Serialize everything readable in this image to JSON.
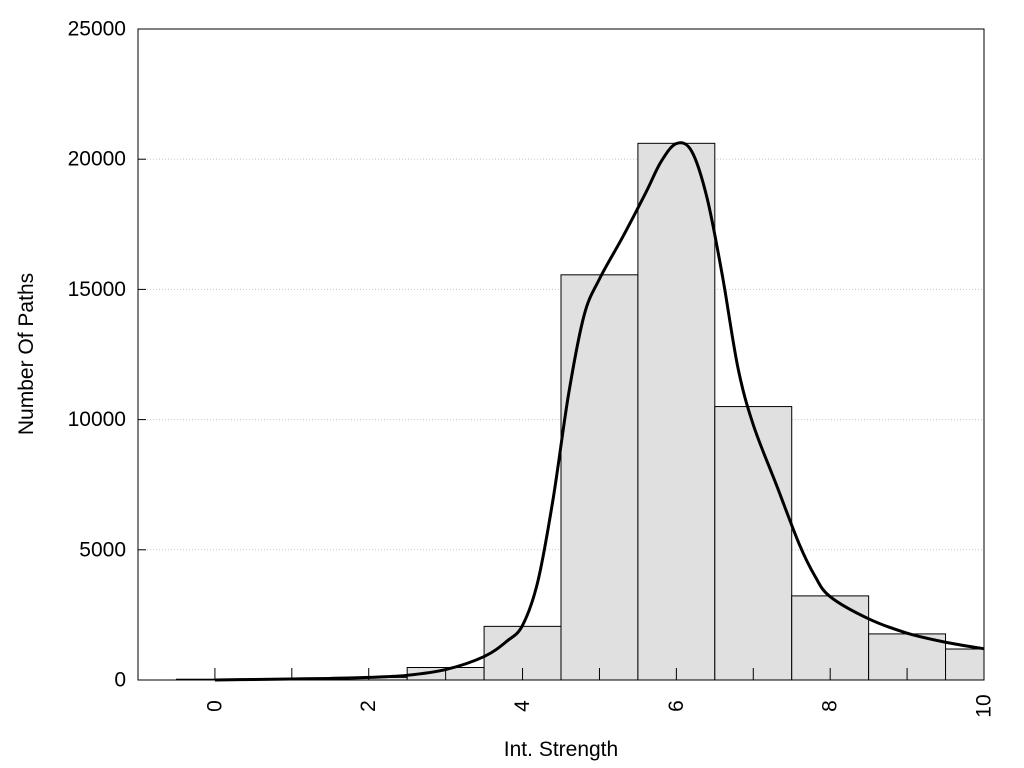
{
  "chart_data": {
    "type": "bar",
    "title": "",
    "xlabel": "Int. Strength",
    "ylabel": "Number Of Paths",
    "xlim": [
      -1,
      10
    ],
    "ylim": [
      0,
      25000
    ],
    "grid": "horizontal dotted",
    "legend": "none",
    "colors": {
      "bar_fill": "#e0e0e0",
      "bar_stroke": "#000000",
      "curve": "#000000",
      "grid": "#c8c8c8"
    },
    "x_ticks": [
      "0",
      "2",
      "4",
      "6",
      "8",
      "10"
    ],
    "y_ticks": [
      "0",
      "5000",
      "10000",
      "15000",
      "20000",
      "25000"
    ],
    "bars": {
      "x": [
        0,
        1,
        2,
        3,
        4,
        5,
        6,
        7,
        8,
        9,
        10
      ],
      "values": [
        30,
        50,
        100,
        480,
        2060,
        15560,
        20610,
        10500,
        3230,
        1770,
        1190
      ]
    },
    "curve": {
      "type": "line",
      "x": [
        0,
        0.5,
        1,
        1.5,
        2,
        2.5,
        3,
        3.5,
        3.8,
        4,
        4.2,
        4.4,
        4.6,
        4.8,
        5,
        5.3,
        5.6,
        5.8,
        6,
        6.2,
        6.4,
        6.6,
        6.8,
        7,
        7.3,
        7.6,
        7.8,
        8,
        8.5,
        9,
        9.5,
        10
      ],
      "y": [
        0,
        20,
        40,
        60,
        100,
        180,
        400,
        900,
        1500,
        2100,
        3800,
        7000,
        11000,
        14000,
        15400,
        17000,
        18700,
        19900,
        20600,
        20300,
        18500,
        15500,
        12000,
        9800,
        7500,
        5200,
        4000,
        3200,
        2350,
        1800,
        1450,
        1200
      ]
    }
  }
}
